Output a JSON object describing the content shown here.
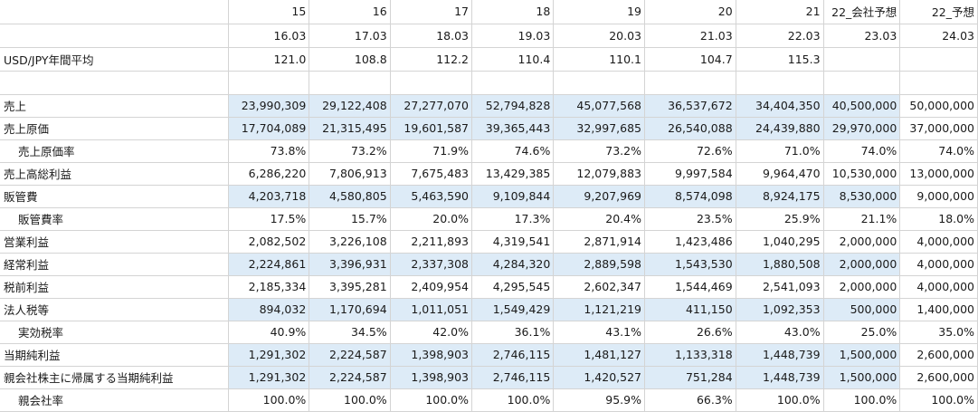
{
  "header": {
    "years": [
      "15",
      "16",
      "17",
      "18",
      "19",
      "20",
      "21",
      "22_会社予想",
      "22_予想"
    ],
    "periods": [
      "16.03",
      "17.03",
      "18.03",
      "19.03",
      "20.03",
      "21.03",
      "22.03",
      "23.03",
      "24.03"
    ]
  },
  "fx": {
    "label": "USD/JPY年間平均",
    "values": [
      "121.0",
      "108.8",
      "112.2",
      "110.4",
      "110.1",
      "104.7",
      "115.3",
      "",
      ""
    ]
  },
  "rows": [
    {
      "label": "売上",
      "indent": false,
      "highlight": true,
      "values": [
        "23,990,309",
        "29,122,408",
        "27,277,070",
        "52,794,828",
        "45,077,568",
        "36,537,672",
        "34,404,350",
        "40,500,000",
        "50,000,000"
      ]
    },
    {
      "label": "売上原価",
      "indent": false,
      "highlight": true,
      "values": [
        "17,704,089",
        "21,315,495",
        "19,601,587",
        "39,365,443",
        "32,997,685",
        "26,540,088",
        "24,439,880",
        "29,970,000",
        "37,000,000"
      ]
    },
    {
      "label": "売上原価率",
      "indent": true,
      "highlight": false,
      "values": [
        "73.8%",
        "73.2%",
        "71.9%",
        "74.6%",
        "73.2%",
        "72.6%",
        "71.0%",
        "74.0%",
        "74.0%"
      ]
    },
    {
      "label": "売上高総利益",
      "indent": false,
      "highlight": false,
      "values": [
        "6,286,220",
        "7,806,913",
        "7,675,483",
        "13,429,385",
        "12,079,883",
        "9,997,584",
        "9,964,470",
        "10,530,000",
        "13,000,000"
      ]
    },
    {
      "label": "販管費",
      "indent": false,
      "highlight": true,
      "values": [
        "4,203,718",
        "4,580,805",
        "5,463,590",
        "9,109,844",
        "9,207,969",
        "8,574,098",
        "8,924,175",
        "8,530,000",
        "9,000,000"
      ]
    },
    {
      "label": "販管費率",
      "indent": true,
      "highlight": false,
      "values": [
        "17.5%",
        "15.7%",
        "20.0%",
        "17.3%",
        "20.4%",
        "23.5%",
        "25.9%",
        "21.1%",
        "18.0%"
      ]
    },
    {
      "label": "営業利益",
      "indent": false,
      "highlight": false,
      "values": [
        "2,082,502",
        "3,226,108",
        "2,211,893",
        "4,319,541",
        "2,871,914",
        "1,423,486",
        "1,040,295",
        "2,000,000",
        "4,000,000"
      ]
    },
    {
      "label": "経常利益",
      "indent": false,
      "highlight": true,
      "values": [
        "2,224,861",
        "3,396,931",
        "2,337,308",
        "4,284,320",
        "2,889,598",
        "1,543,530",
        "1,880,508",
        "2,000,000",
        "4,000,000"
      ]
    },
    {
      "label": "税前利益",
      "indent": false,
      "highlight": false,
      "values": [
        "2,185,334",
        "3,395,281",
        "2,409,954",
        "4,295,545",
        "2,602,347",
        "1,544,469",
        "2,541,093",
        "2,000,000",
        "4,000,000"
      ]
    },
    {
      "label": "法人税等",
      "indent": false,
      "highlight": true,
      "values": [
        "894,032",
        "1,170,694",
        "1,011,051",
        "1,549,429",
        "1,121,219",
        "411,150",
        "1,092,353",
        "500,000",
        "1,400,000"
      ]
    },
    {
      "label": "実効税率",
      "indent": true,
      "highlight": false,
      "values": [
        "40.9%",
        "34.5%",
        "42.0%",
        "36.1%",
        "43.1%",
        "26.6%",
        "43.0%",
        "25.0%",
        "35.0%"
      ]
    },
    {
      "label": "当期純利益",
      "indent": false,
      "highlight": true,
      "values": [
        "1,291,302",
        "2,224,587",
        "1,398,903",
        "2,746,115",
        "1,481,127",
        "1,133,318",
        "1,448,739",
        "1,500,000",
        "2,600,000"
      ]
    },
    {
      "label": "親会社株主に帰属する当期純利益",
      "indent": false,
      "highlight": true,
      "values": [
        "1,291,302",
        "2,224,587",
        "1,398,903",
        "2,746,115",
        "1,420,527",
        "751,284",
        "1,448,739",
        "1,500,000",
        "2,600,000"
      ]
    },
    {
      "label": "親会社率",
      "indent": true,
      "highlight": false,
      "values": [
        "100.0%",
        "100.0%",
        "100.0%",
        "100.0%",
        "95.9%",
        "66.3%",
        "100.0%",
        "100.0%",
        "100.0%"
      ]
    }
  ]
}
